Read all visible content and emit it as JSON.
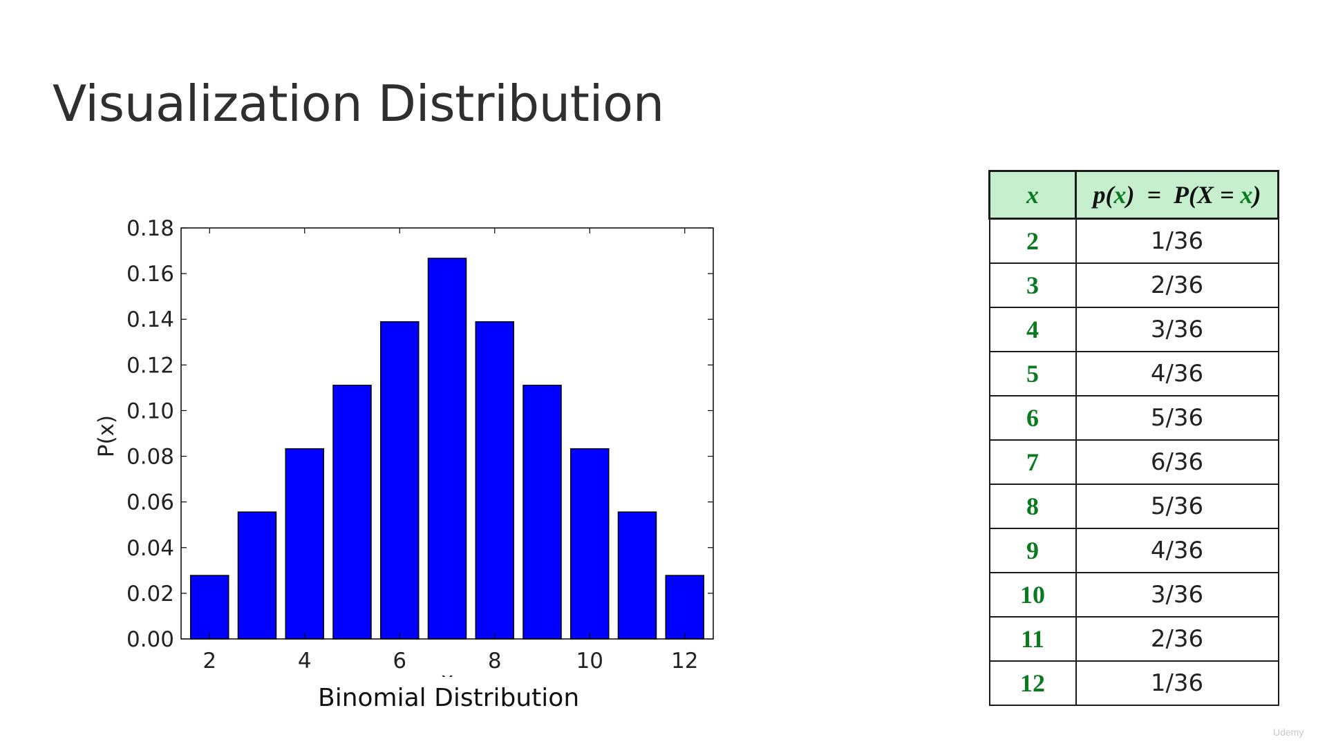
{
  "slide": {
    "title": "Visualization Distribution",
    "caption": "Binomial Distribution",
    "watermark": "Udemy"
  },
  "chart_data": {
    "type": "bar",
    "x": [
      2,
      3,
      4,
      5,
      6,
      7,
      8,
      9,
      10,
      11,
      12
    ],
    "values": [
      0.0278,
      0.0556,
      0.0833,
      0.1111,
      0.1389,
      0.1667,
      0.1389,
      0.1111,
      0.0833,
      0.0556,
      0.0278
    ],
    "xlabel": "x",
    "ylabel": "P(x)",
    "ylim": [
      0,
      0.18
    ],
    "xlim": [
      1.4,
      12.6
    ],
    "yticks": [
      "0.00",
      "0.02",
      "0.04",
      "0.06",
      "0.08",
      "0.10",
      "0.12",
      "0.14",
      "0.16",
      "0.18"
    ],
    "xticks": [
      2,
      4,
      6,
      8,
      10,
      12
    ],
    "bar_color": "#0000ff",
    "grid": false
  },
  "table": {
    "header": {
      "x": "x",
      "p_lhs": "p",
      "p_arg": "x",
      "p_eq": "=",
      "p_rhs_a": "P(X =",
      "p_rhs_b": "x"
    },
    "rows": [
      {
        "x": "2",
        "p": "1/36"
      },
      {
        "x": "3",
        "p": "2/36"
      },
      {
        "x": "4",
        "p": "3/36"
      },
      {
        "x": "5",
        "p": "4/36"
      },
      {
        "x": "6",
        "p": "5/36"
      },
      {
        "x": "7",
        "p": "6/36"
      },
      {
        "x": "8",
        "p": "5/36"
      },
      {
        "x": "9",
        "p": "4/36"
      },
      {
        "x": "10",
        "p": "3/36"
      },
      {
        "x": "11",
        "p": "2/36"
      },
      {
        "x": "12",
        "p": "1/36"
      }
    ],
    "header_bg": "#c6efce",
    "accent_green": "#0a7a1f"
  }
}
